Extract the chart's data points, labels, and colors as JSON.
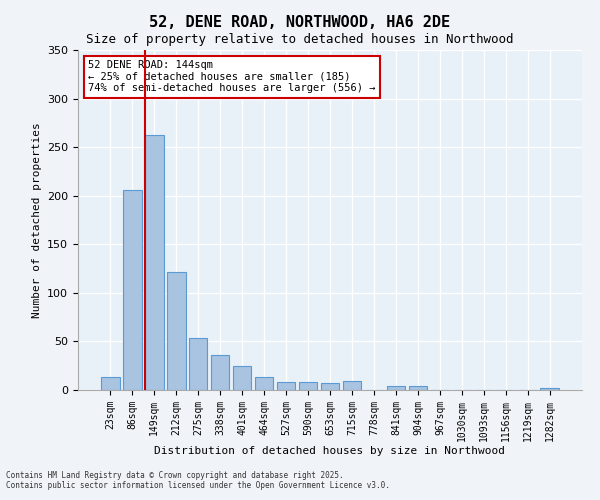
{
  "title1": "52, DENE ROAD, NORTHWOOD, HA6 2DE",
  "title2": "Size of property relative to detached houses in Northwood",
  "xlabel": "Distribution of detached houses by size in Northwood",
  "ylabel": "Number of detached properties",
  "categories": [
    "23sqm",
    "86sqm",
    "149sqm",
    "212sqm",
    "275sqm",
    "338sqm",
    "401sqm",
    "464sqm",
    "527sqm",
    "590sqm",
    "653sqm",
    "715sqm",
    "778sqm",
    "841sqm",
    "904sqm",
    "967sqm",
    "1030sqm",
    "1093sqm",
    "1156sqm",
    "1219sqm",
    "1282sqm"
  ],
  "values": [
    13,
    206,
    263,
    121,
    54,
    36,
    25,
    13,
    8,
    8,
    7,
    9,
    0,
    4,
    4,
    0,
    0,
    0,
    0,
    0,
    2
  ],
  "bar_color": "#a8c4e0",
  "bar_edge_color": "#5b9bd5",
  "vline_x": 2,
  "vline_color": "#cc0000",
  "annotation_text": "52 DENE ROAD: 144sqm\n← 25% of detached houses are smaller (185)\n74% of semi-detached houses are larger (556) →",
  "annotation_box_color": "#cc0000",
  "ylim": [
    0,
    350
  ],
  "yticks": [
    0,
    50,
    100,
    150,
    200,
    250,
    300,
    350
  ],
  "bg_color": "#e8f0f8",
  "grid_color": "#ffffff",
  "footer1": "Contains HM Land Registry data © Crown copyright and database right 2025.",
  "footer2": "Contains public sector information licensed under the Open Government Licence v3.0."
}
